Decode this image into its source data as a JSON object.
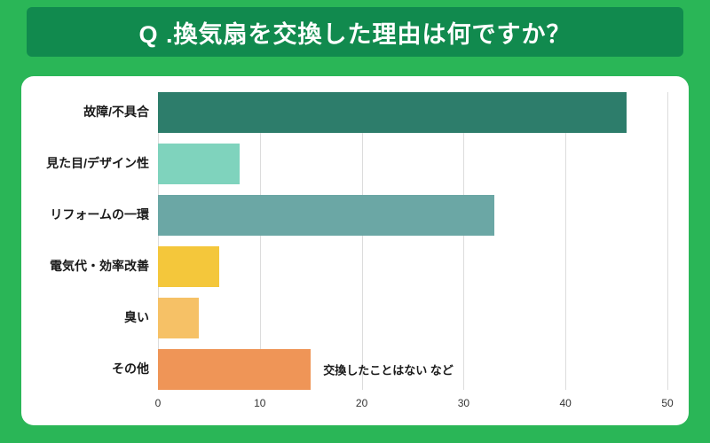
{
  "header": {
    "title": "Q .換気扇を交換した理由は何ですか？"
  },
  "colors": {
    "page_bg": "#2ab657",
    "header_bg": "#118a4e",
    "title_color": "#ffffff",
    "card_bg": "#ffffff",
    "gridline_color": "#dcdcdc",
    "label_color": "#1a1a1a",
    "tick_color": "#333333"
  },
  "chart_data": {
    "type": "bar",
    "orientation": "horizontal",
    "title": "Q .換気扇を交換した理由は何ですか？",
    "categories": [
      "故障/不具合",
      "見た目/デザイン性",
      "リフォームの一環",
      "電気代・効率改善",
      "臭い",
      "その他"
    ],
    "values": [
      46,
      8,
      33,
      6,
      4,
      15
    ],
    "bar_colors": [
      "#2d7d6b",
      "#7fd3bd",
      "#6ba7a5",
      "#f4c73b",
      "#f6c166",
      "#ef9557"
    ],
    "xlim": [
      0,
      50
    ],
    "x_ticks": [
      0,
      10,
      20,
      30,
      40,
      50
    ],
    "xlabel": "",
    "ylabel": "",
    "grid": true,
    "legend": false,
    "annotation": {
      "category": "その他",
      "text": "交換したことはない  など"
    }
  }
}
